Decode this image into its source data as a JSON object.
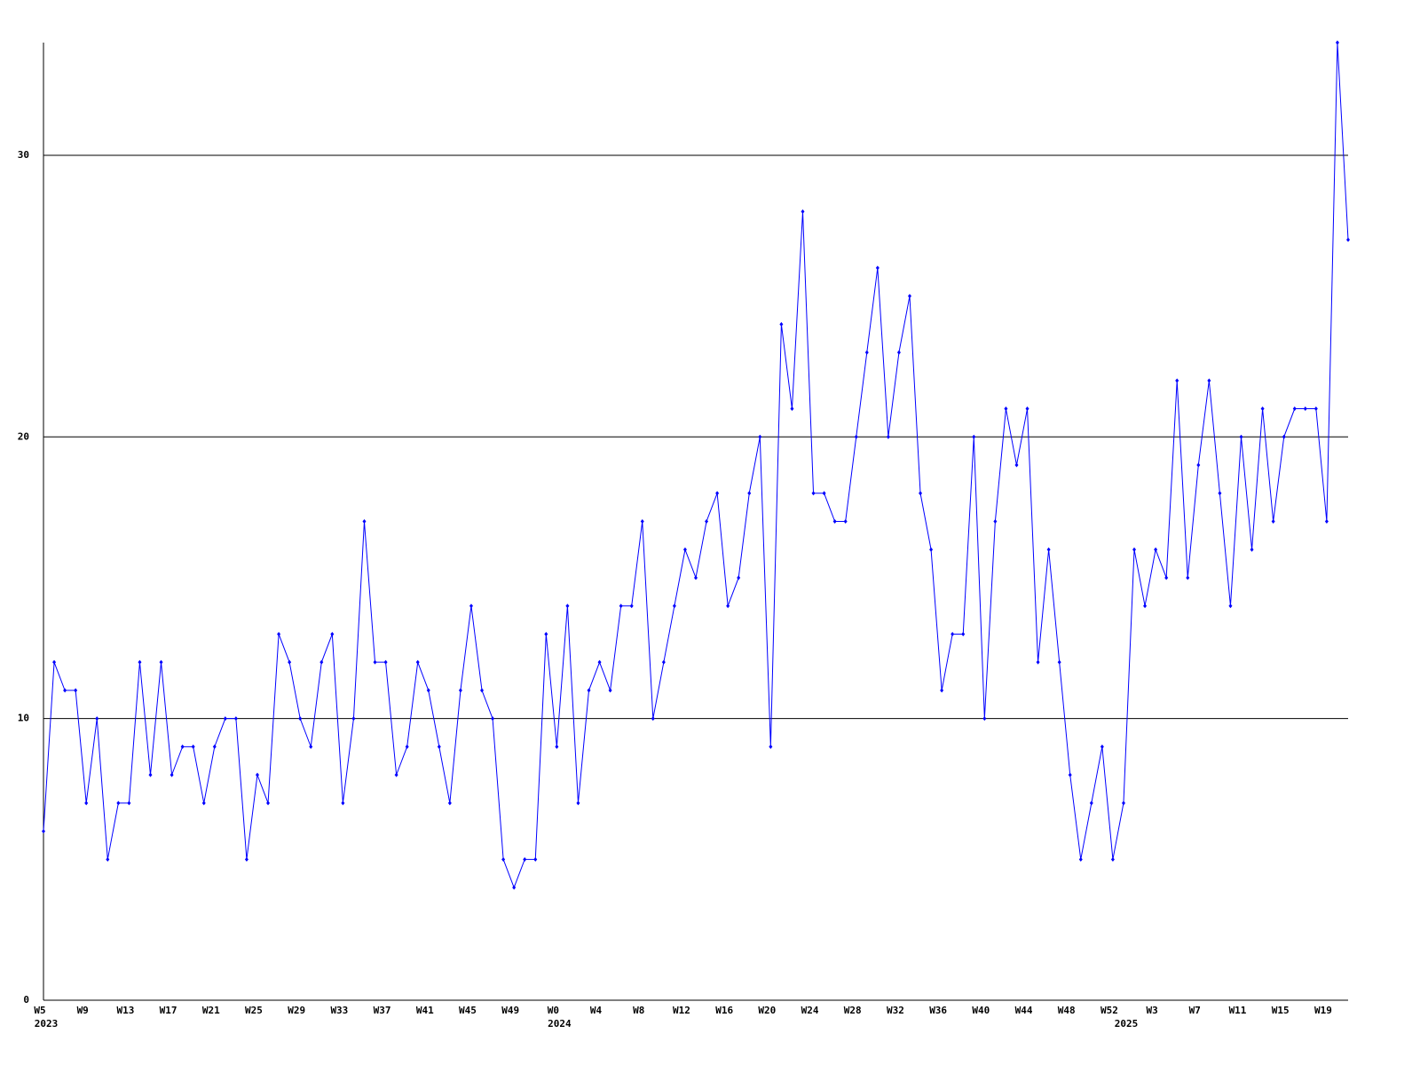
{
  "chart_data": {
    "type": "line",
    "categories": [
      "W5",
      null,
      null,
      null,
      "W9",
      null,
      null,
      null,
      "W13",
      null,
      null,
      null,
      "W17",
      null,
      null,
      null,
      "W21",
      null,
      null,
      null,
      "W25",
      null,
      null,
      null,
      "W29",
      null,
      null,
      null,
      "W33",
      null,
      null,
      null,
      "W37",
      null,
      null,
      null,
      "W41",
      null,
      null,
      null,
      "W45",
      null,
      null,
      null,
      "W49",
      null,
      null,
      null,
      "W0",
      null,
      null,
      null,
      "W4",
      null,
      null,
      null,
      "W8",
      null,
      null,
      null,
      "W12",
      null,
      null,
      null,
      "W16",
      null,
      null,
      null,
      "W20",
      null,
      null,
      null,
      "W24",
      null,
      null,
      null,
      "W28",
      null,
      null,
      null,
      "W32",
      null,
      null,
      null,
      "W36",
      null,
      null,
      null,
      "W40",
      null,
      null,
      null,
      "W44",
      null,
      null,
      null,
      "W48",
      null,
      null,
      null,
      "W52",
      null,
      null,
      null,
      "W3",
      null,
      null,
      null,
      "W7",
      null,
      null,
      null,
      "W11",
      null,
      null,
      null,
      "W15",
      null,
      null,
      null,
      "W19",
      null,
      null
    ],
    "year_categories": [
      "2023",
      null,
      null,
      null,
      null,
      null,
      null,
      null,
      null,
      null,
      null,
      null,
      null,
      null,
      null,
      null,
      null,
      null,
      null,
      null,
      null,
      null,
      null,
      null,
      null,
      null,
      null,
      null,
      null,
      null,
      null,
      null,
      null,
      null,
      null,
      null,
      null,
      null,
      null,
      null,
      null,
      null,
      null,
      null,
      null,
      null,
      null,
      null,
      "2024",
      null,
      null,
      null,
      null,
      null,
      null,
      null,
      null,
      null,
      null,
      null,
      null,
      null,
      null,
      null,
      null,
      null,
      null,
      null,
      null,
      null,
      null,
      null,
      null,
      null,
      null,
      null,
      null,
      null,
      null,
      null,
      null,
      null,
      null,
      null,
      null,
      null,
      null,
      null,
      null,
      null,
      null,
      null,
      null,
      null,
      null,
      null,
      null,
      null,
      null,
      null,
      null,
      "2025",
      null,
      null,
      null,
      null,
      null,
      null,
      null,
      null,
      null,
      null,
      null,
      null,
      null,
      null,
      null,
      null,
      null,
      null,
      null,
      null,
      null
    ],
    "series": [
      {
        "color": "#0000ff",
        "values": [
          6,
          12,
          11,
          11,
          7,
          10,
          5,
          7,
          7,
          12,
          8,
          12,
          8,
          9,
          9,
          7,
          9,
          10,
          10,
          5,
          8,
          7,
          13,
          12,
          10,
          9,
          12,
          13,
          7,
          10,
          17,
          12,
          12,
          8,
          9,
          12,
          11,
          9,
          7,
          11,
          14,
          11,
          10,
          5,
          4,
          5,
          5,
          13,
          9,
          14,
          7,
          11,
          12,
          11,
          14,
          14,
          17,
          10,
          12,
          14,
          16,
          15,
          17,
          18,
          14,
          15,
          18,
          20,
          9,
          24,
          21,
          28,
          18,
          18,
          17,
          17,
          20,
          23,
          26,
          20,
          23,
          25,
          18,
          16,
          11,
          13,
          13,
          20,
          10,
          17,
          21,
          19,
          21,
          12,
          16,
          12,
          8,
          5,
          7,
          9,
          5,
          7,
          16,
          14,
          16,
          15,
          22,
          15,
          19,
          22,
          18,
          14,
          20,
          16,
          21,
          17,
          20,
          21,
          21,
          21,
          17,
          34,
          27
        ]
      }
    ],
    "ylim": [
      0,
      34
    ],
    "yticks": [
      0,
      10,
      20,
      30
    ],
    "grid": true
  }
}
